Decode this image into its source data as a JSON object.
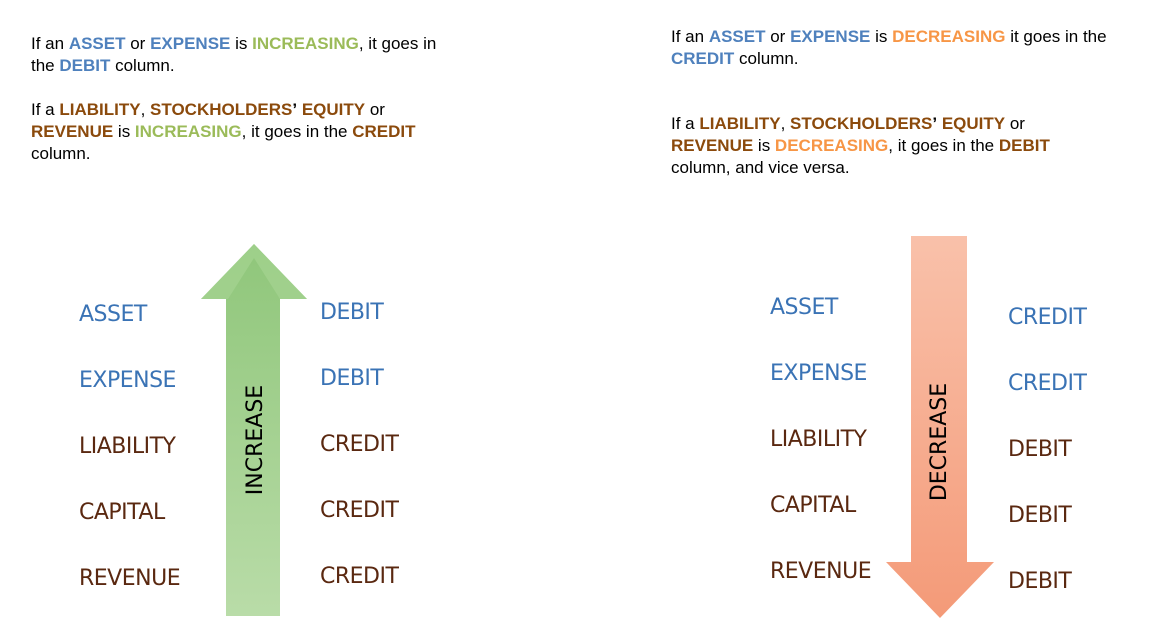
{
  "left_text": {
    "p1": {
      "s1": "If an ",
      "w1": "ASSET",
      "s2": " or ",
      "w2": "EXPENSE",
      "s3": " is ",
      "w3": "INCREASING",
      "s4": ", it goes in",
      "s5": "the ",
      "w4": "DEBIT",
      "s6": " column."
    },
    "p2": {
      "s1": "If a ",
      "w1": "LIABILITY",
      "s2": ", ",
      "w2": "STOCKHOLDERS",
      "w2b": "’",
      "s3": " ",
      "w3": "EQUITY",
      "s4": " or",
      "w4": "REVENUE",
      "s5": " is ",
      "w5": "INCREASING",
      "s6": ", it goes in the ",
      "w6": "CREDIT",
      "s7": "column."
    }
  },
  "right_text": {
    "p1": {
      "s1": "If an ",
      "w1": "ASSET",
      "s2": " or ",
      "w2": "EXPENSE",
      "s3": " is ",
      "w3": "DECREASING",
      "s4": " it goes in the",
      "w4": "CREDIT",
      "s5": " column."
    },
    "p2": {
      "s1": "If a ",
      "w1": "LIABILITY",
      "s2": ", ",
      "w2": "STOCKHOLDERS",
      "w2b": "’",
      "s3": " ",
      "w3": "EQUITY",
      "s4": " or",
      "w4": "REVENUE",
      "s5": " is ",
      "w5": "DECREASING",
      "s6": ", it goes in the ",
      "w6": "DEBIT",
      "s7": "column, and vice versa."
    }
  },
  "increase_diagram": {
    "arrow_label": "INCREASE",
    "arrow_color": "#9bcf86",
    "rows": [
      {
        "account": "ASSET",
        "side": "DEBIT"
      },
      {
        "account": "EXPENSE",
        "side": "DEBIT"
      },
      {
        "account": "LIABILITY",
        "side": "CREDIT"
      },
      {
        "account": "CAPITAL",
        "side": "CREDIT"
      },
      {
        "account": "REVENUE",
        "side": "CREDIT"
      }
    ]
  },
  "decrease_diagram": {
    "arrow_label": "DECREASE",
    "arrow_color": "#f7a98a",
    "rows": [
      {
        "account": "ASSET",
        "side": "CREDIT"
      },
      {
        "account": "EXPENSE",
        "side": "CREDIT"
      },
      {
        "account": "LIABILITY",
        "side": "DEBIT"
      },
      {
        "account": "CAPITAL",
        "side": "DEBIT"
      },
      {
        "account": "REVENUE",
        "side": "DEBIT"
      }
    ]
  },
  "colors": {
    "blue": "#4f81bd",
    "green": "#9bbb59",
    "brown": "#8b4a0c",
    "orange": "#f79646"
  }
}
